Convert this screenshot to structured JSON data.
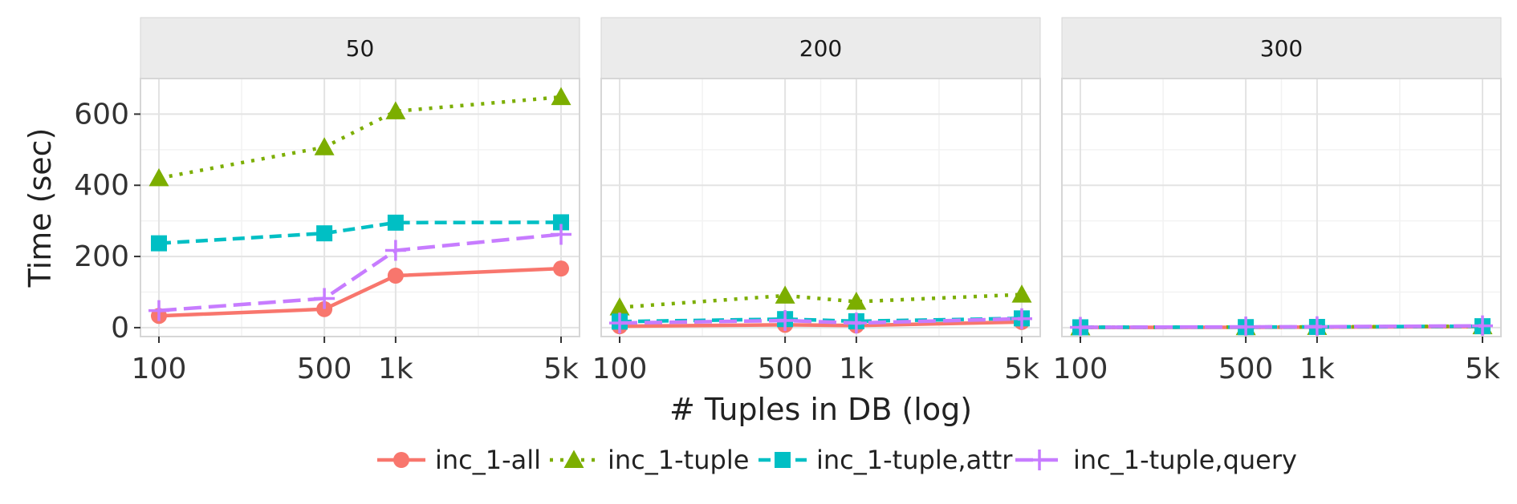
{
  "chart_data": {
    "type": "line",
    "xlabel": "# Tuples in DB (log)",
    "ylabel": "Time (sec)",
    "x_scale": "log",
    "x_categories": [
      "100",
      "500",
      "1k",
      "5k"
    ],
    "x": [
      100,
      500,
      1000,
      5000
    ],
    "ylim": [
      -25,
      700
    ],
    "yticks": [
      0,
      200,
      400,
      600
    ],
    "grid": true,
    "legend_position": "bottom",
    "series_styles": [
      {
        "name": "inc_1-all",
        "color": "#F8766D",
        "dash": "solid",
        "marker": "circle"
      },
      {
        "name": "inc_1-tuple",
        "color": "#7CAE00",
        "dash": "dotted",
        "marker": "triangle"
      },
      {
        "name": "inc_1-tuple,attr",
        "color": "#00BFC4",
        "dash": "dashed",
        "marker": "square"
      },
      {
        "name": "inc_1-tuple,query",
        "color": "#C77CFF",
        "dash": "longdash",
        "marker": "plus"
      }
    ],
    "panels": [
      {
        "label": "50",
        "series": [
          {
            "name": "inc_1-all",
            "values": [
              33,
              52,
              146,
              166
            ]
          },
          {
            "name": "inc_1-tuple",
            "values": [
              420,
              507,
              608,
              648
            ]
          },
          {
            "name": "inc_1-tuple,attr",
            "values": [
              237,
              265,
              295,
              296
            ]
          },
          {
            "name": "inc_1-tuple,query",
            "values": [
              48,
              82,
              217,
              262
            ]
          }
        ]
      },
      {
        "label": "200",
        "series": [
          {
            "name": "inc_1-all",
            "values": [
              4,
              8,
              6,
              16
            ]
          },
          {
            "name": "inc_1-tuple",
            "values": [
              57,
              90,
              73,
              93
            ]
          },
          {
            "name": "inc_1-tuple,attr",
            "values": [
              17,
              24,
              18,
              26
            ]
          },
          {
            "name": "inc_1-tuple,query",
            "values": [
              13,
              20,
              13,
              25
            ]
          }
        ]
      },
      {
        "label": "300",
        "series": [
          {
            "name": "inc_1-all",
            "values": [
              0.5,
              1,
              1.5,
              3
            ]
          },
          {
            "name": "inc_1-tuple",
            "values": [
              1,
              1.5,
              2,
              4
            ]
          },
          {
            "name": "inc_1-tuple,attr",
            "values": [
              1,
              1.5,
              2,
              4
            ]
          },
          {
            "name": "inc_1-tuple,query",
            "values": [
              1,
              2,
              2.5,
              5
            ]
          }
        ]
      }
    ]
  }
}
